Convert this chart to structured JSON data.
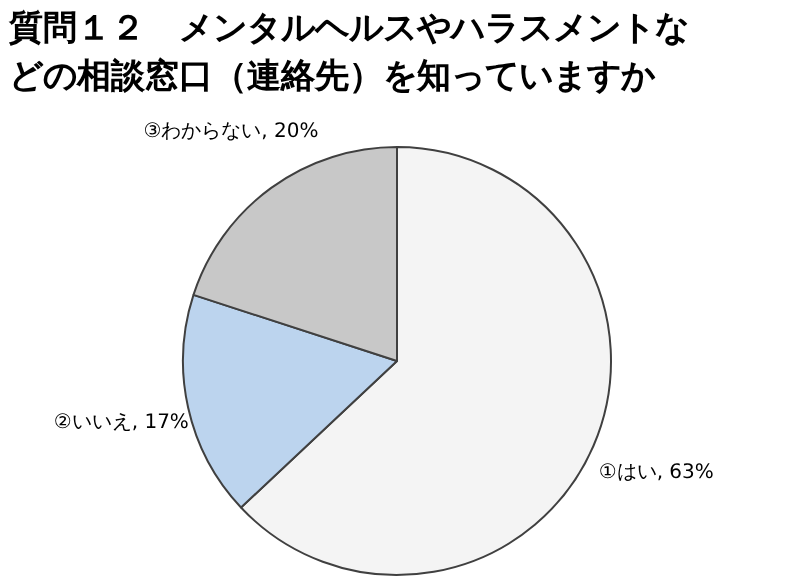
{
  "chart_data": {
    "type": "pie",
    "title": "質問１２　メンタルヘルスやハラスメントなどの相談窓口（連絡先）を知っていますか",
    "categories": [
      "①はい",
      "②いいえ",
      "③わからない"
    ],
    "values": [
      63,
      17,
      20
    ],
    "colors": [
      "#f4f4f4",
      "#bcd4ee",
      "#c8c8c8"
    ],
    "value_labels": [
      "63%",
      "17%",
      "20%"
    ],
    "legend": false
  }
}
